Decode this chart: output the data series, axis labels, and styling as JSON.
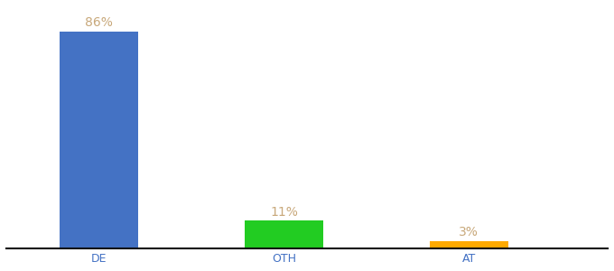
{
  "categories": [
    "DE",
    "OTH",
    "AT"
  ],
  "values": [
    86,
    11,
    3
  ],
  "bar_colors": [
    "#4472c4",
    "#22cc22",
    "#ffaa00"
  ],
  "value_labels": [
    "86%",
    "11%",
    "3%"
  ],
  "label_color": "#c8a87a",
  "ylim": [
    0,
    96
  ],
  "bar_width": 0.85,
  "background_color": "#ffffff",
  "label_fontsize": 10,
  "tick_fontsize": 9,
  "x_positions": [
    1,
    3,
    5
  ],
  "xlim": [
    0,
    6.5
  ]
}
